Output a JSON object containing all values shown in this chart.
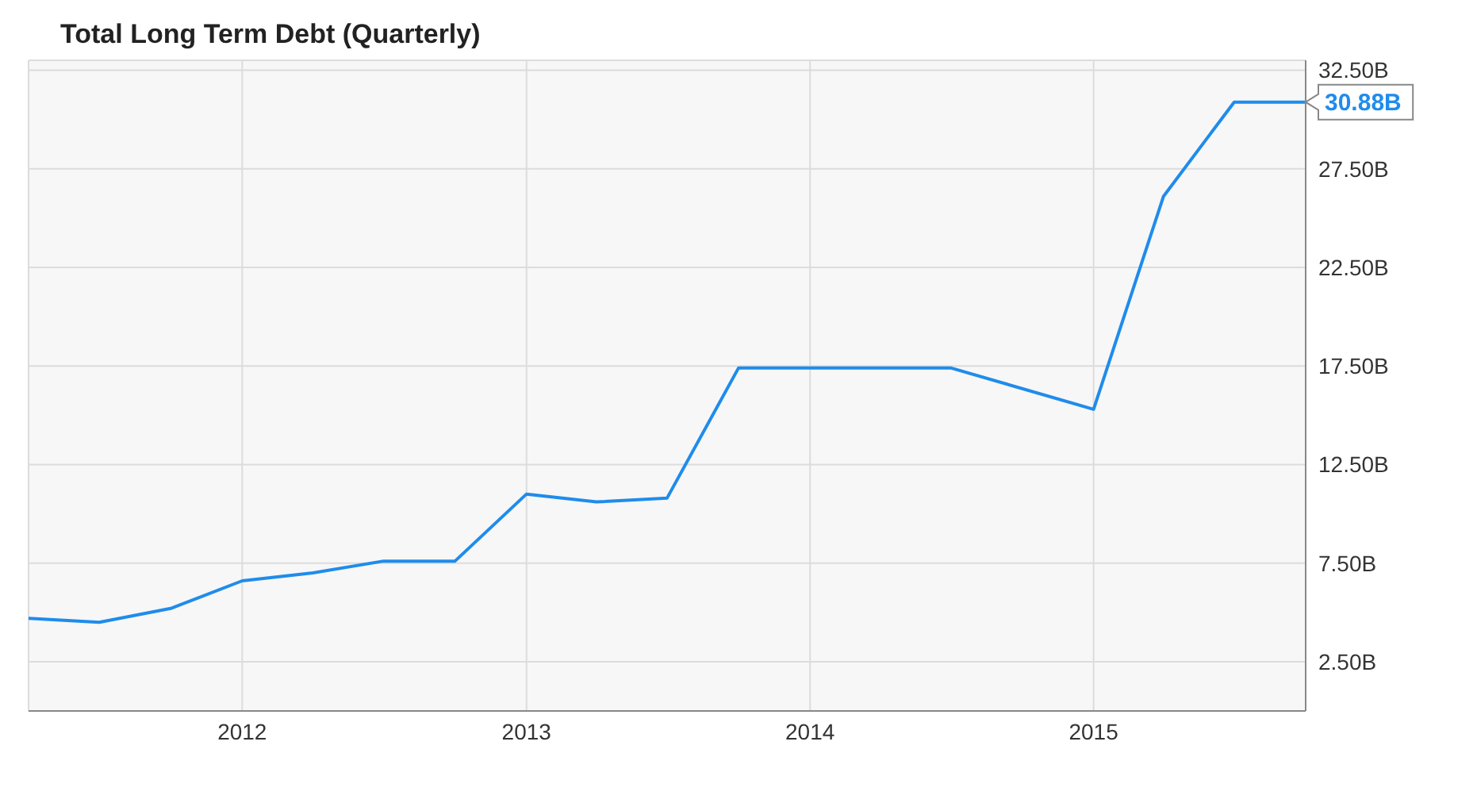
{
  "chart_data": {
    "type": "line",
    "title": "Total Long Term Debt (Quarterly)",
    "x": [
      "2011-04",
      "2011-07",
      "2011-10",
      "2012-01",
      "2012-04",
      "2012-07",
      "2012-10",
      "2013-01",
      "2013-04",
      "2013-07",
      "2013-10",
      "2014-01",
      "2014-07",
      "2015-01",
      "2015-04",
      "2015-07",
      "2015-10"
    ],
    "series": [
      {
        "color": "#1f8ceb",
        "values": [
          4.7,
          4.5,
          5.2,
          6.6,
          7.0,
          7.6,
          7.6,
          11.0,
          10.6,
          10.8,
          17.4,
          17.4,
          17.4,
          15.3,
          26.1,
          30.88,
          30.88
        ]
      }
    ],
    "xlim": [
      "2011-04",
      "2015-10"
    ],
    "xticks": [
      "2012",
      "2013",
      "2014",
      "2015"
    ],
    "ylim": [
      0,
      33
    ],
    "yticks": [
      {
        "value": 2.5,
        "label": "2.50B"
      },
      {
        "value": 7.5,
        "label": "7.50B"
      },
      {
        "value": 12.5,
        "label": "12.50B"
      },
      {
        "value": 17.5,
        "label": "17.50B"
      },
      {
        "value": 22.5,
        "label": "22.50B"
      },
      {
        "value": 27.5,
        "label": "27.50B"
      },
      {
        "value": 32.5,
        "label": "32.50B"
      }
    ],
    "annotations": [
      {
        "text": "30.88B",
        "x": "2015-10",
        "y": 30.88
      }
    ],
    "grid": true,
    "legend": false,
    "marker": "none",
    "line_style": "solid"
  }
}
